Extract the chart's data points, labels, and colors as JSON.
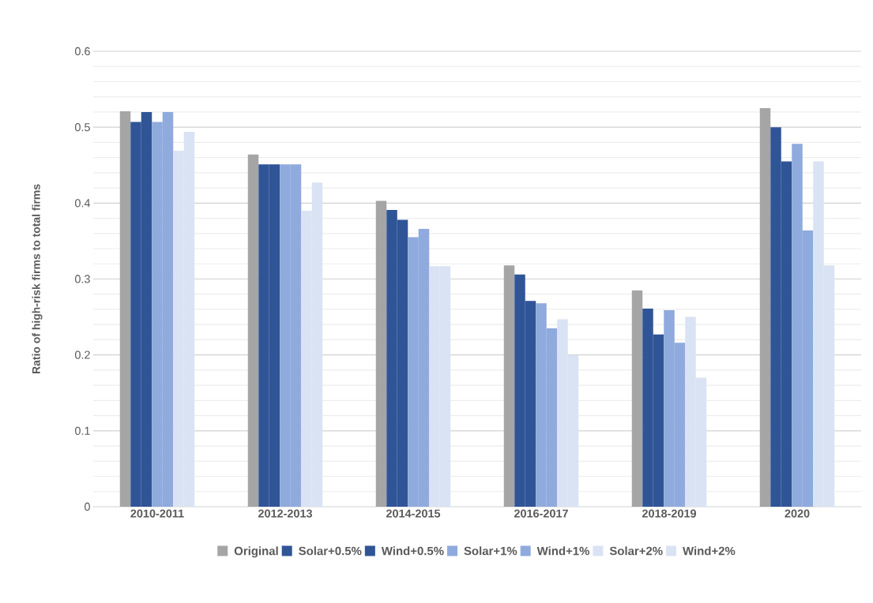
{
  "chart_data": {
    "type": "bar",
    "ylabel": "Ratio of high-risk firms to total firms",
    "categories": [
      "2010-2011",
      "2012-2013",
      "2014-2015",
      "2016-2017",
      "2018-2019",
      "2020"
    ],
    "series": [
      {
        "name": "Original",
        "color": "#a5a5a5",
        "values": [
          0.521,
          0.464,
          0.403,
          0.318,
          0.285,
          0.525
        ]
      },
      {
        "name": "Solar+0.5%",
        "color": "#2f5597",
        "values": [
          0.507,
          0.451,
          0.391,
          0.306,
          0.261,
          0.5
        ]
      },
      {
        "name": "Wind+0.5%",
        "color": "#2f5597",
        "values": [
          0.52,
          0.451,
          0.378,
          0.271,
          0.227,
          0.455
        ]
      },
      {
        "name": "Solar+1%",
        "color": "#8faadc",
        "values": [
          0.507,
          0.451,
          0.355,
          0.268,
          0.259,
          0.478
        ]
      },
      {
        "name": "Wind+1%",
        "color": "#8faadc",
        "values": [
          0.52,
          0.451,
          0.366,
          0.235,
          0.216,
          0.364
        ]
      },
      {
        "name": "Solar+2%",
        "color": "#dae3f3",
        "values": [
          0.469,
          0.39,
          0.317,
          0.247,
          0.25,
          0.455
        ]
      },
      {
        "name": "Wind+2%",
        "color": "#dae3f3",
        "values": [
          0.494,
          0.427,
          0.317,
          0.2,
          0.17,
          0.318
        ]
      }
    ],
    "ylim": [
      0,
      0.6
    ],
    "yticks": [
      0,
      0.1,
      0.2,
      0.3,
      0.4,
      0.5,
      0.6
    ],
    "grid": "y",
    "legend": "bottom"
  }
}
